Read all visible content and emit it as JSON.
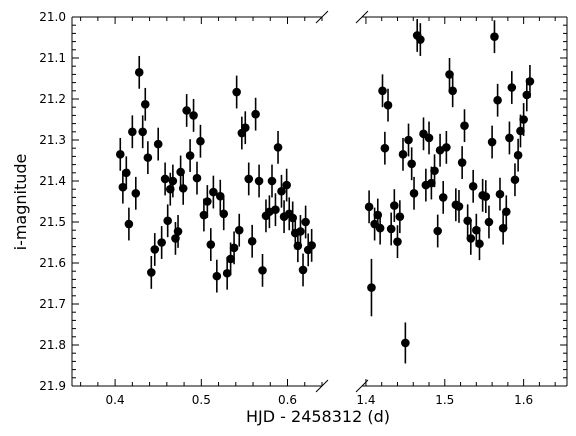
{
  "chart_data": {
    "type": "scatter",
    "title": "",
    "xlabel": "HJD - 2458312 (d)",
    "ylabel": "i-magnitude",
    "broken_x_axis": true,
    "y_inverted": true,
    "ylim": [
      21.0,
      21.9
    ],
    "y_ticks": [
      "21.0",
      "21.1",
      "21.2",
      "21.3",
      "21.4",
      "21.5",
      "21.6",
      "21.7",
      "21.8",
      "21.9"
    ],
    "grid": false,
    "panels": [
      {
        "xlim": [
          0.35,
          0.64
        ],
        "x_ticks": [
          "0.4",
          "0.5",
          "0.6"
        ],
        "points": [
          [
            0.406,
            21.335,
            0.04
          ],
          [
            0.409,
            21.415,
            0.04
          ],
          [
            0.413,
            21.38,
            0.04
          ],
          [
            0.416,
            21.505,
            0.04
          ],
          [
            0.42,
            21.28,
            0.04
          ],
          [
            0.424,
            21.43,
            0.04
          ],
          [
            0.428,
            21.135,
            0.04
          ],
          [
            0.432,
            21.28,
            0.04
          ],
          [
            0.435,
            21.213,
            0.04
          ],
          [
            0.438,
            21.343,
            0.04
          ],
          [
            0.442,
            21.623,
            0.04
          ],
          [
            0.446,
            21.567,
            0.04
          ],
          [
            0.45,
            21.31,
            0.04
          ],
          [
            0.454,
            21.55,
            0.04
          ],
          [
            0.458,
            21.395,
            0.04
          ],
          [
            0.461,
            21.497,
            0.04
          ],
          [
            0.464,
            21.42,
            0.04
          ],
          [
            0.467,
            21.4,
            0.04
          ],
          [
            0.47,
            21.54,
            0.04
          ],
          [
            0.473,
            21.523,
            0.04
          ],
          [
            0.476,
            21.378,
            0.04
          ],
          [
            0.479,
            21.418,
            0.04
          ],
          [
            0.483,
            21.228,
            0.04
          ],
          [
            0.487,
            21.338,
            0.04
          ],
          [
            0.491,
            21.24,
            0.04
          ],
          [
            0.495,
            21.393,
            0.04
          ],
          [
            0.499,
            21.303,
            0.04
          ],
          [
            0.503,
            21.483,
            0.04
          ],
          [
            0.507,
            21.45,
            0.04
          ],
          [
            0.511,
            21.555,
            0.04
          ],
          [
            0.514,
            21.427,
            0.04
          ],
          [
            0.518,
            21.632,
            0.04
          ],
          [
            0.522,
            21.437,
            0.04
          ],
          [
            0.526,
            21.48,
            0.04
          ],
          [
            0.53,
            21.625,
            0.04
          ],
          [
            0.534,
            21.59,
            0.04
          ],
          [
            0.538,
            21.563,
            0.04
          ],
          [
            0.541,
            21.183,
            0.04
          ],
          [
            0.544,
            21.52,
            0.04
          ],
          [
            0.547,
            21.283,
            0.04
          ],
          [
            0.551,
            21.27,
            0.04
          ],
          [
            0.555,
            21.395,
            0.04
          ],
          [
            0.559,
            21.547,
            0.04
          ],
          [
            0.563,
            21.237,
            0.04
          ],
          [
            0.567,
            21.4,
            0.04
          ],
          [
            0.571,
            21.618,
            0.04
          ],
          [
            0.575,
            21.485,
            0.04
          ],
          [
            0.579,
            21.475,
            0.04
          ],
          [
            0.582,
            21.4,
            0.04
          ],
          [
            0.586,
            21.47,
            0.04
          ],
          [
            0.589,
            21.318,
            0.04
          ],
          [
            0.593,
            21.425,
            0.04
          ],
          [
            0.596,
            21.487,
            0.04
          ],
          [
            0.599,
            21.41,
            0.04
          ],
          [
            0.602,
            21.48,
            0.04
          ],
          [
            0.606,
            21.49,
            0.04
          ],
          [
            0.609,
            21.527,
            0.04
          ],
          [
            0.612,
            21.558,
            0.04
          ],
          [
            0.615,
            21.523,
            0.04
          ],
          [
            0.618,
            21.617,
            0.04
          ],
          [
            0.621,
            21.5,
            0.04
          ],
          [
            0.624,
            21.568,
            0.04
          ],
          [
            0.628,
            21.557,
            0.04
          ]
        ]
      },
      {
        "xlim": [
          1.395,
          1.655
        ],
        "x_ticks": [
          "1.4",
          "1.5",
          "1.6"
        ],
        "points": [
          [
            1.404,
            21.463,
            0.04
          ],
          [
            1.407,
            21.66,
            0.07
          ],
          [
            1.411,
            21.505,
            0.04
          ],
          [
            1.415,
            21.483,
            0.04
          ],
          [
            1.418,
            21.515,
            0.04
          ],
          [
            1.421,
            21.18,
            0.04
          ],
          [
            1.424,
            21.32,
            0.04
          ],
          [
            1.428,
            21.215,
            0.04
          ],
          [
            1.432,
            21.517,
            0.04
          ],
          [
            1.436,
            21.46,
            0.04
          ],
          [
            1.44,
            21.548,
            0.04
          ],
          [
            1.443,
            21.487,
            0.04
          ],
          [
            1.447,
            21.335,
            0.04
          ],
          [
            1.45,
            21.795,
            0.05
          ],
          [
            1.454,
            21.3,
            0.04
          ],
          [
            1.458,
            21.358,
            0.04
          ],
          [
            1.461,
            21.43,
            0.04
          ],
          [
            1.465,
            21.045,
            0.04
          ],
          [
            1.469,
            21.055,
            0.04
          ],
          [
            1.473,
            21.285,
            0.04
          ],
          [
            1.476,
            21.41,
            0.04
          ],
          [
            1.48,
            21.295,
            0.04
          ],
          [
            1.483,
            21.405,
            0.04
          ],
          [
            1.487,
            21.375,
            0.04
          ],
          [
            1.491,
            21.522,
            0.04
          ],
          [
            1.494,
            21.325,
            0.04
          ],
          [
            1.498,
            21.44,
            0.04
          ],
          [
            1.502,
            21.318,
            0.04
          ],
          [
            1.506,
            21.14,
            0.04
          ],
          [
            1.51,
            21.18,
            0.04
          ],
          [
            1.514,
            21.458,
            0.04
          ],
          [
            1.518,
            21.462,
            0.04
          ],
          [
            1.522,
            21.355,
            0.04
          ],
          [
            1.525,
            21.265,
            0.04
          ],
          [
            1.529,
            21.497,
            0.04
          ],
          [
            1.533,
            21.54,
            0.04
          ],
          [
            1.536,
            21.413,
            0.04
          ],
          [
            1.54,
            21.52,
            0.04
          ],
          [
            1.544,
            21.553,
            0.04
          ],
          [
            1.548,
            21.435,
            0.04
          ],
          [
            1.552,
            21.438,
            0.04
          ],
          [
            1.556,
            21.5,
            0.04
          ],
          [
            1.56,
            21.305,
            0.04
          ],
          [
            1.563,
            21.048,
            0.04
          ],
          [
            1.567,
            21.203,
            0.04
          ],
          [
            1.57,
            21.432,
            0.04
          ],
          [
            1.574,
            21.515,
            0.04
          ],
          [
            1.578,
            21.475,
            0.04
          ],
          [
            1.582,
            21.295,
            0.04
          ],
          [
            1.585,
            21.172,
            0.04
          ],
          [
            1.589,
            21.397,
            0.04
          ],
          [
            1.593,
            21.337,
            0.04
          ],
          [
            1.596,
            21.278,
            0.04
          ],
          [
            1.6,
            21.25,
            0.04
          ],
          [
            1.604,
            21.19,
            0.04
          ],
          [
            1.608,
            21.157,
            0.04
          ]
        ]
      }
    ],
    "marker_color": "#000000"
  }
}
